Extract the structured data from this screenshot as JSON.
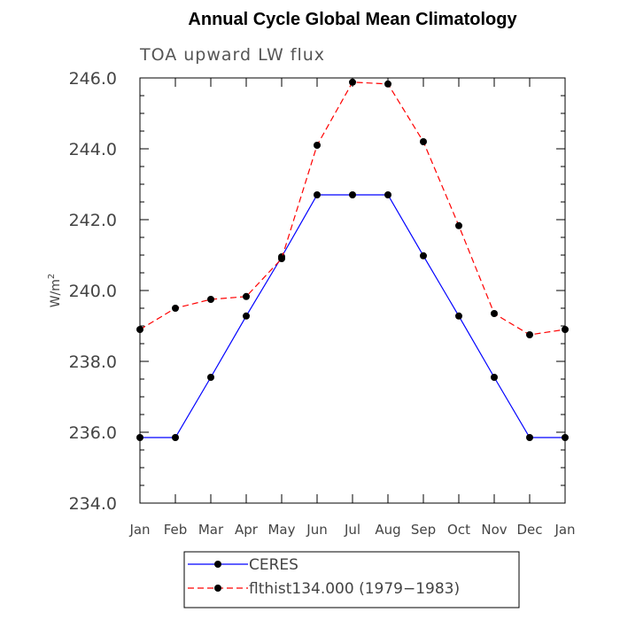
{
  "chart_data": {
    "type": "line",
    "title": "Annual Cycle Global Mean Climatology",
    "subtitle": "TOA upward LW flux",
    "ylabel_base": "W/m",
    "ylabel_sup": "2",
    "xlabel": "",
    "categories": [
      "Jan",
      "Feb",
      "Mar",
      "Apr",
      "May",
      "Jun",
      "Jul",
      "Aug",
      "Sep",
      "Oct",
      "Nov",
      "Dec",
      "Jan"
    ],
    "ylim": [
      234.0,
      246.0
    ],
    "yticks": [
      "234.0",
      "236.0",
      "238.0",
      "240.0",
      "242.0",
      "244.0",
      "246.0"
    ],
    "grid": false,
    "legend_position": "bottom",
    "series": [
      {
        "name": "CERES",
        "color": "#0000ff",
        "dashed": false,
        "values": [
          235.85,
          235.85,
          237.55,
          239.28,
          240.95,
          242.7,
          242.7,
          242.7,
          240.98,
          239.28,
          237.55,
          235.85,
          235.85
        ]
      },
      {
        "name": "flthist134.000 (1979−1983)",
        "color": "#ff0000",
        "dashed": true,
        "values": [
          238.9,
          239.5,
          239.75,
          239.83,
          240.9,
          244.1,
          245.88,
          245.83,
          244.2,
          241.83,
          239.35,
          238.75,
          238.9
        ]
      }
    ]
  }
}
